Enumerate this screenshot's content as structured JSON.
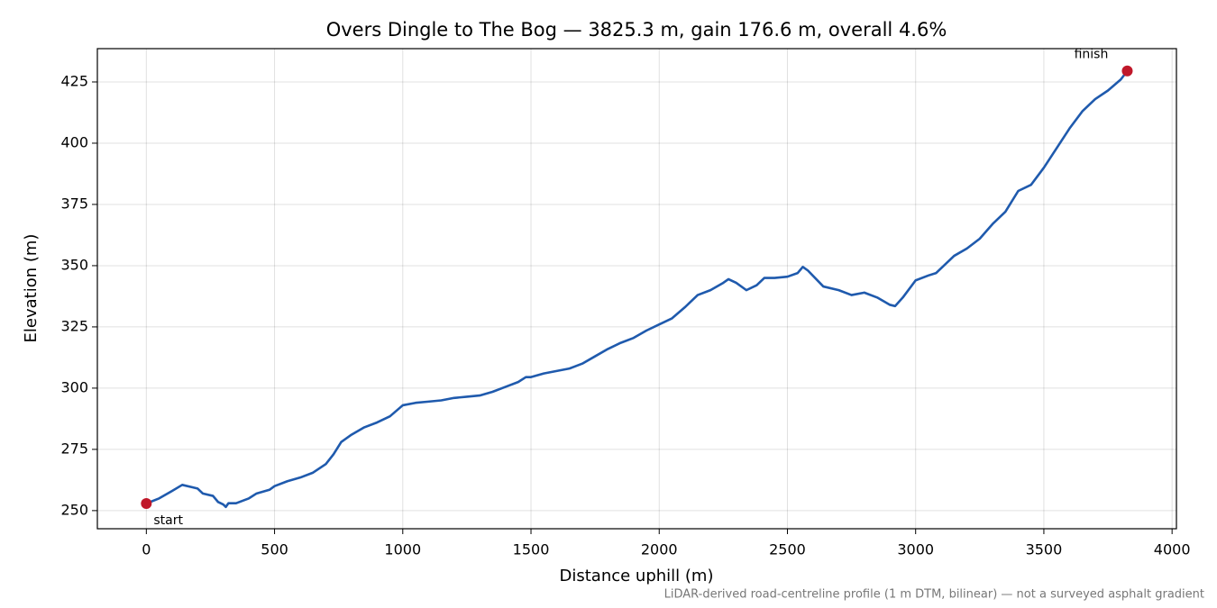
{
  "chart_data": {
    "type": "line",
    "title": "Overs Dingle to The Bog — 3825.3 m, gain 176.6 m, overall 4.6%",
    "x_label": "Distance uphill (m)",
    "y_label": "Elevation (m)",
    "footnote": "LiDAR-derived road-centreline profile (1 m DTM, bilinear) — not a surveyed asphalt gradient",
    "x": [
      0,
      50,
      100,
      140,
      180,
      200,
      220,
      260,
      280,
      300,
      310,
      320,
      350,
      400,
      430,
      480,
      500,
      550,
      600,
      650,
      700,
      730,
      760,
      800,
      850,
      900,
      950,
      1000,
      1050,
      1100,
      1150,
      1200,
      1250,
      1300,
      1350,
      1400,
      1450,
      1480,
      1500,
      1550,
      1600,
      1650,
      1700,
      1750,
      1800,
      1850,
      1900,
      1950,
      2000,
      2050,
      2100,
      2150,
      2200,
      2250,
      2270,
      2300,
      2340,
      2380,
      2410,
      2450,
      2500,
      2540,
      2560,
      2580,
      2640,
      2700,
      2750,
      2800,
      2850,
      2900,
      2920,
      2950,
      3000,
      3050,
      3080,
      3150,
      3200,
      3250,
      3300,
      3350,
      3400,
      3450,
      3500,
      3550,
      3600,
      3650,
      3700,
      3750,
      3800,
      3825.3
    ],
    "values": [
      252.9,
      255,
      258,
      260.5,
      259.5,
      259,
      257,
      256,
      253.5,
      252.5,
      251.5,
      253,
      253,
      255,
      257,
      258.5,
      260,
      262,
      263.5,
      265.5,
      269,
      273,
      278,
      281,
      284,
      286,
      288.5,
      293,
      294,
      294.5,
      295,
      296,
      296.5,
      297,
      298.5,
      300.5,
      302.5,
      304.5,
      304.5,
      306,
      307,
      308,
      310,
      313,
      316,
      318.5,
      320.5,
      323.5,
      326,
      328.5,
      333,
      338,
      340,
      343,
      344.5,
      343,
      340,
      342,
      345,
      345,
      345.5,
      347,
      349.5,
      348,
      341.5,
      340,
      338,
      339,
      337,
      334,
      333.5,
      337,
      344,
      346,
      347,
      354,
      357,
      361,
      367,
      372,
      380.5,
      383,
      390,
      398,
      406,
      413,
      418,
      421.5,
      426,
      429.5
    ],
    "color": "#1f5aad",
    "markers": {
      "x": [
        0,
        3825.3
      ],
      "values": [
        252.9,
        429.5
      ],
      "labels": [
        "start",
        "finish"
      ],
      "color": "#c0182a"
    },
    "xlim": [
      -191,
      4017
    ],
    "ylim": [
      242.6,
      438.6
    ],
    "xticks": [
      0,
      500,
      1000,
      1500,
      2000,
      2500,
      3000,
      3500,
      4000
    ],
    "yticks": [
      250,
      275,
      300,
      325,
      350,
      375,
      400,
      425
    ],
    "grid": true
  }
}
